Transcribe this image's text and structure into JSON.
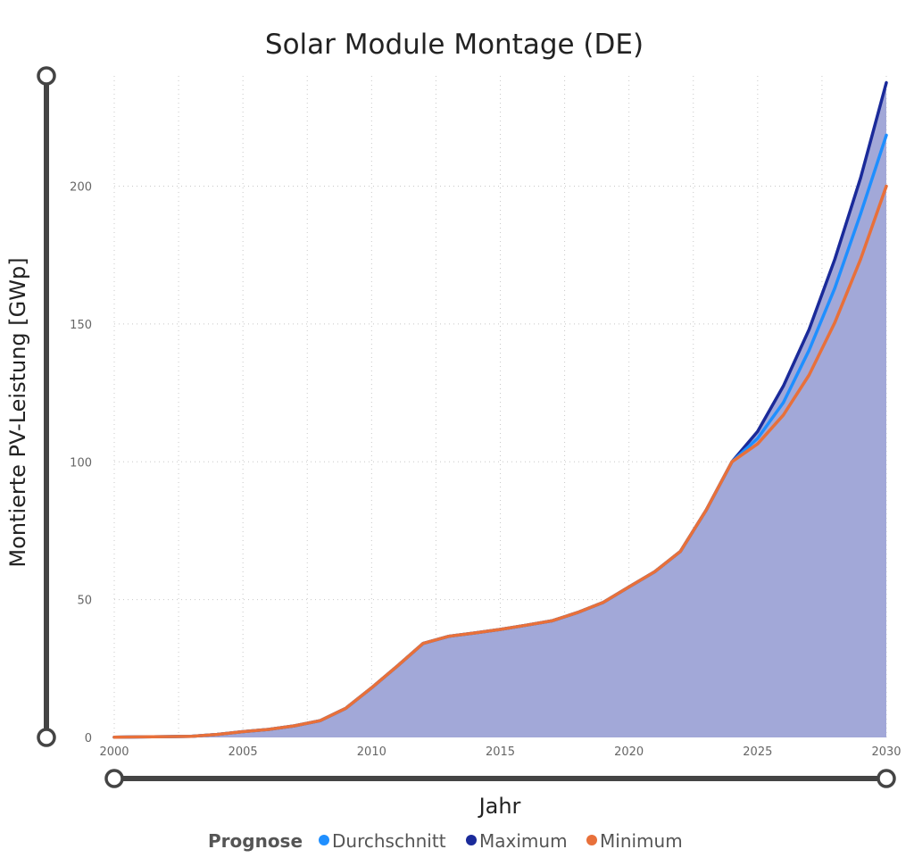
{
  "chart_data": {
    "type": "area",
    "title": "Solar Module Montage (DE)",
    "xlabel": "Jahr",
    "ylabel": "Montierte PV-Leistung [GWp]",
    "xlim": [
      2000,
      2030
    ],
    "ylim": [
      0,
      240
    ],
    "xticks": [
      2000,
      2005,
      2010,
      2015,
      2020,
      2025,
      2030
    ],
    "yticks": [
      0,
      50,
      100,
      150,
      200
    ],
    "grid": true,
    "legend": {
      "title": "Prognose",
      "placement": "bottom",
      "entries": [
        "Durchschnitt",
        "Maximum",
        "Minimum"
      ]
    },
    "area_fill_color": "#a2a8d8",
    "x": [
      2000,
      2001,
      2002,
      2003,
      2004,
      2005,
      2006,
      2007,
      2008,
      2009,
      2010,
      2011,
      2012,
      2013,
      2014,
      2015,
      2016,
      2017,
      2018,
      2019,
      2020,
      2021,
      2022,
      2023,
      2024,
      2025,
      2026,
      2027,
      2028,
      2029,
      2030
    ],
    "history_values": [
      0.1,
      0.2,
      0.3,
      0.4,
      1.1,
      2.1,
      2.9,
      4.2,
      6.1,
      10.6,
      18.0,
      25.9,
      34.1,
      36.7,
      37.9,
      39.2,
      40.7,
      42.3,
      45.3,
      49.0,
      54.6,
      60.1,
      67.5,
      82.5,
      100.0
    ],
    "series": [
      {
        "name": "Maximum",
        "color": "#1a2a9a",
        "x": [
          2024,
          2025,
          2026,
          2027,
          2028,
          2029,
          2030
        ],
        "values": [
          100.0,
          111.0,
          127.5,
          148.0,
          173.5,
          203.0,
          237.5
        ]
      },
      {
        "name": "Durchschnitt",
        "color": "#1f8fff",
        "x": [
          2024,
          2025,
          2026,
          2027,
          2028,
          2029,
          2030
        ],
        "values": [
          100.0,
          108.5,
          121.5,
          140.5,
          163.0,
          190.0,
          218.5
        ]
      },
      {
        "name": "Minimum",
        "color": "#e8703a",
        "x": [
          2024,
          2025,
          2026,
          2027,
          2028,
          2029,
          2030
        ],
        "values": [
          100.0,
          106.5,
          117.0,
          131.5,
          150.5,
          173.5,
          200.0
        ]
      }
    ]
  }
}
